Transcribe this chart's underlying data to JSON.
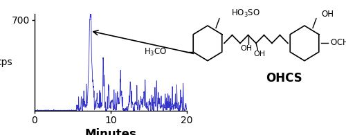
{
  "xlabel": "Minutes",
  "ylabel": "cps",
  "xlim": [
    0,
    20
  ],
  "ylim": [
    0,
    750
  ],
  "ytick_top": 700,
  "line_color": "#3333cc",
  "bg_color": "#ffffff",
  "peak_time": 7.3,
  "peak_height": 700,
  "xlabel_fontsize": 12,
  "ylabel_fontsize": 10,
  "ytop_label": "700",
  "figsize": [
    5.0,
    1.95
  ],
  "dpi": 100
}
